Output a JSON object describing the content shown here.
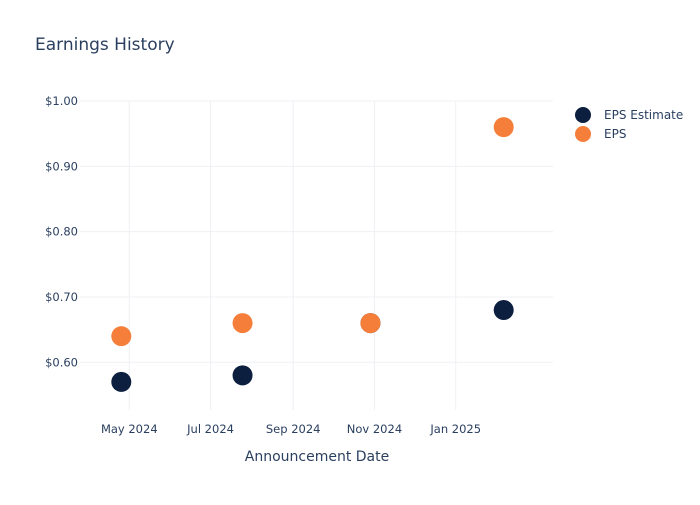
{
  "chart_data": {
    "type": "scatter",
    "title": "Earnings History",
    "xlabel": "Announcement Date",
    "ylabel": "",
    "x_ticks": [
      {
        "label": "May 2024",
        "date": "2024-05-01"
      },
      {
        "label": "Jul 2024",
        "date": "2024-07-01"
      },
      {
        "label": "Sep 2024",
        "date": "2024-09-01"
      },
      {
        "label": "Nov 2024",
        "date": "2024-11-01"
      },
      {
        "label": "Jan 2025",
        "date": "2025-01-01"
      }
    ],
    "x_range": [
      "2024-03-25",
      "2025-03-15"
    ],
    "y_ticks": [
      {
        "label": "$0.60",
        "value": 0.6
      },
      {
        "label": "$0.70",
        "value": 0.7
      },
      {
        "label": "$0.80",
        "value": 0.8
      },
      {
        "label": "$0.90",
        "value": 0.9
      },
      {
        "label": "$1.00",
        "value": 1.0
      }
    ],
    "ylim": [
      0.527,
      1.0
    ],
    "legend_position": "top-right",
    "series": [
      {
        "name": "EPS Estimate",
        "color": "#0d1f3f",
        "points": [
          {
            "date": "2024-04-25",
            "value": 0.57
          },
          {
            "date": "2024-07-25",
            "value": 0.58
          },
          {
            "date": "2024-10-29",
            "value": 0.66
          },
          {
            "date": "2025-02-06",
            "value": 0.68
          }
        ]
      },
      {
        "name": "EPS",
        "color": "#f57f3a",
        "points": [
          {
            "date": "2024-04-25",
            "value": 0.64
          },
          {
            "date": "2024-07-25",
            "value": 0.66
          },
          {
            "date": "2024-10-29",
            "value": 0.66
          },
          {
            "date": "2025-02-06",
            "value": 0.96
          }
        ]
      }
    ]
  }
}
